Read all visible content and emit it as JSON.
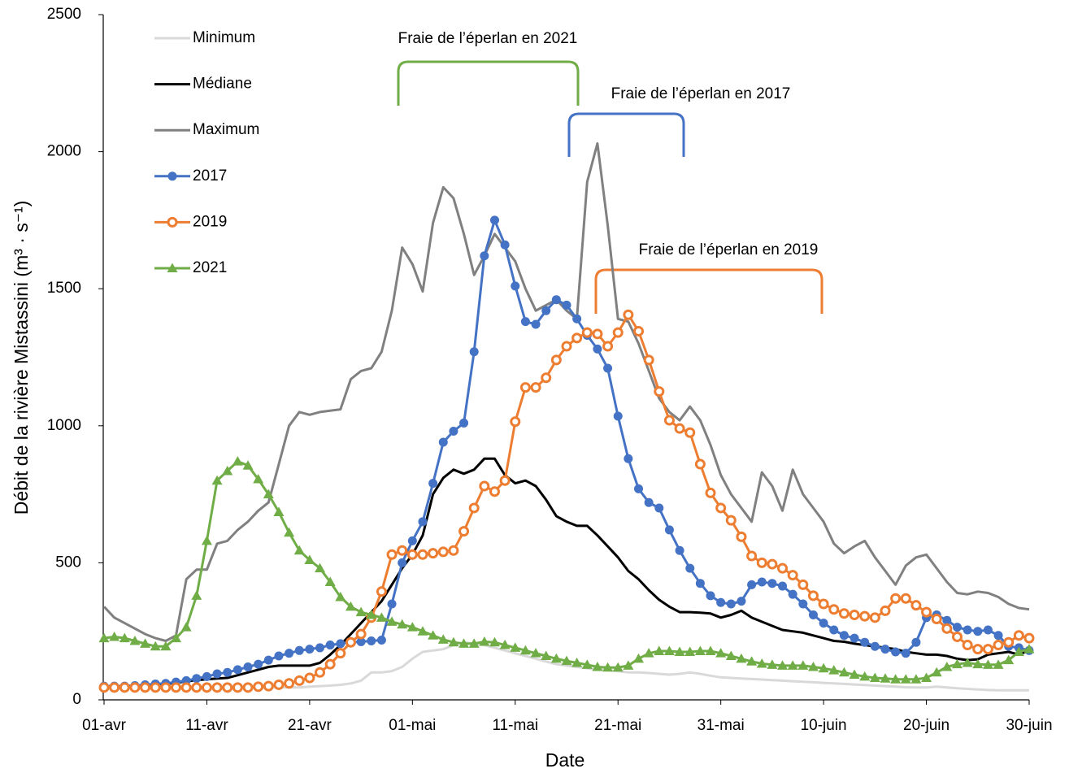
{
  "chart_data": {
    "type": "line",
    "x_label": "Date",
    "y_label": "Débit  de la rivière Mistassini (m³ · s⁻¹)",
    "categories": [
      "01-avr",
      null,
      null,
      null,
      null,
      null,
      null,
      null,
      null,
      null,
      "11-avr",
      null,
      null,
      null,
      null,
      null,
      null,
      null,
      null,
      null,
      "21-avr",
      null,
      null,
      null,
      null,
      null,
      null,
      null,
      null,
      null,
      "01-mai",
      null,
      null,
      null,
      null,
      null,
      null,
      null,
      null,
      null,
      "11-mai",
      null,
      null,
      null,
      null,
      null,
      null,
      null,
      null,
      null,
      "21-mai",
      null,
      null,
      null,
      null,
      null,
      null,
      null,
      null,
      null,
      "31-mai",
      null,
      null,
      null,
      null,
      null,
      null,
      null,
      null,
      null,
      "10-juin",
      null,
      null,
      null,
      null,
      null,
      null,
      null,
      null,
      null,
      "20-juin",
      null,
      null,
      null,
      null,
      null,
      null,
      null,
      null,
      null,
      "30-juin"
    ],
    "ylim": [
      0,
      2500
    ],
    "yticks": [
      0,
      500,
      1000,
      1500,
      2000,
      2500
    ],
    "grid": false,
    "legend": "upper left",
    "series": [
      {
        "name": "Minimum",
        "color": "#d9d9d9",
        "marker": "none",
        "values": [
          45,
          45,
          45,
          45,
          45,
          45,
          45,
          45,
          45,
          45,
          45,
          45,
          45,
          45,
          45,
          45,
          45,
          45,
          45,
          45,
          48,
          50,
          52,
          55,
          60,
          70,
          100,
          100,
          105,
          120,
          150,
          175,
          180,
          185,
          200,
          210,
          205,
          200,
          190,
          180,
          170,
          160,
          150,
          140,
          130,
          125,
          120,
          115,
          110,
          108,
          105,
          100,
          100,
          98,
          95,
          92,
          95,
          100,
          95,
          88,
          82,
          80,
          78,
          76,
          74,
          72,
          70,
          68,
          66,
          64,
          62,
          60,
          58,
          56,
          54,
          52,
          50,
          48,
          46,
          45,
          45,
          48,
          45,
          42,
          40,
          38,
          36,
          35,
          35,
          35,
          35
        ]
      },
      {
        "name": "Médiane",
        "color": "#000000",
        "marker": "none",
        "values": [
          50,
          50,
          50,
          52,
          54,
          56,
          58,
          62,
          68,
          72,
          75,
          78,
          80,
          90,
          100,
          110,
          120,
          125,
          125,
          125,
          125,
          135,
          165,
          200,
          240,
          280,
          320,
          360,
          420,
          480,
          530,
          600,
          750,
          810,
          840,
          825,
          840,
          880,
          880,
          820,
          790,
          800,
          780,
          730,
          670,
          650,
          635,
          635,
          600,
          560,
          520,
          470,
          440,
          400,
          365,
          340,
          320,
          320,
          318,
          315,
          300,
          310,
          325,
          300,
          285,
          270,
          255,
          250,
          245,
          235,
          225,
          215,
          212,
          205,
          200,
          195,
          190,
          185,
          175,
          170,
          165,
          165,
          160,
          150,
          145,
          148,
          165,
          170,
          175,
          165,
          180
        ]
      },
      {
        "name": "Maximum",
        "color": "#808080",
        "marker": "none",
        "values": [
          340,
          300,
          280,
          260,
          240,
          225,
          215,
          235,
          440,
          475,
          475,
          570,
          580,
          620,
          650,
          690,
          720,
          860,
          1000,
          1050,
          1040,
          1050,
          1055,
          1060,
          1170,
          1200,
          1210,
          1270,
          1420,
          1650,
          1590,
          1490,
          1740,
          1870,
          1830,
          1700,
          1550,
          1620,
          1700,
          1650,
          1600,
          1500,
          1420,
          1440,
          1460,
          1420,
          1390,
          1890,
          2030,
          1730,
          1390,
          1380,
          1300,
          1200,
          1100,
          1050,
          1020,
          1070,
          1020,
          930,
          820,
          750,
          700,
          650,
          830,
          780,
          690,
          840,
          750,
          700,
          650,
          570,
          535,
          560,
          580,
          520,
          470,
          420,
          490,
          520,
          530,
          480,
          430,
          390,
          385,
          395,
          390,
          375,
          350,
          335,
          330
        ]
      },
      {
        "name": "2017",
        "color": "#4472c4",
        "marker": "circle",
        "values": [
          50,
          50,
          50,
          52,
          55,
          58,
          60,
          65,
          70,
          78,
          85,
          95,
          100,
          110,
          120,
          130,
          145,
          160,
          170,
          180,
          185,
          190,
          200,
          205,
          210,
          212,
          215,
          218,
          350,
          500,
          580,
          650,
          790,
          940,
          980,
          1010,
          1270,
          1620,
          1750,
          1660,
          1510,
          1380,
          1370,
          1420,
          1460,
          1440,
          1390,
          1330,
          1280,
          1210,
          1035,
          880,
          770,
          720,
          700,
          620,
          545,
          480,
          425,
          380,
          355,
          350,
          360,
          420,
          430,
          425,
          415,
          385,
          350,
          310,
          280,
          255,
          235,
          225,
          210,
          195,
          185,
          175,
          170,
          210,
          300,
          310,
          290,
          265,
          255,
          250,
          255,
          235,
          195,
          190,
          180
        ]
      },
      {
        "name": "2019",
        "color": "#ed7d31",
        "marker": "open-circle",
        "values": [
          45,
          45,
          45,
          45,
          45,
          45,
          45,
          45,
          45,
          45,
          45,
          45,
          45,
          45,
          45,
          48,
          50,
          55,
          60,
          70,
          80,
          100,
          130,
          170,
          210,
          240,
          300,
          395,
          530,
          545,
          530,
          530,
          535,
          540,
          545,
          615,
          700,
          780,
          760,
          800,
          1015,
          1140,
          1140,
          1175,
          1240,
          1290,
          1320,
          1340,
          1335,
          1290,
          1340,
          1405,
          1345,
          1240,
          1125,
          1020,
          990,
          975,
          860,
          755,
          700,
          655,
          595,
          525,
          500,
          495,
          480,
          455,
          420,
          380,
          350,
          330,
          315,
          310,
          305,
          300,
          325,
          370,
          370,
          345,
          320,
          295,
          260,
          230,
          200,
          185,
          185,
          200,
          210,
          235,
          225
        ]
      },
      {
        "name": "2021",
        "color": "#70ad47",
        "marker": "triangle",
        "values": [
          225,
          230,
          225,
          215,
          205,
          195,
          195,
          225,
          265,
          380,
          580,
          800,
          835,
          870,
          855,
          805,
          750,
          685,
          610,
          545,
          510,
          480,
          430,
          375,
          340,
          320,
          310,
          300,
          285,
          275,
          265,
          250,
          235,
          220,
          210,
          205,
          205,
          212,
          210,
          200,
          190,
          180,
          170,
          160,
          150,
          142,
          135,
          128,
          120,
          118,
          118,
          125,
          150,
          170,
          178,
          178,
          175,
          175,
          178,
          178,
          170,
          160,
          150,
          140,
          132,
          128,
          125,
          125,
          125,
          120,
          115,
          108,
          100,
          92,
          85,
          80,
          78,
          75,
          75,
          75,
          80,
          100,
          120,
          130,
          135,
          130,
          128,
          128,
          145,
          175,
          185
        ]
      }
    ],
    "annotations": [
      {
        "text": "Fraie de l’éperlan en 2021",
        "color": "#70ad47"
      },
      {
        "text": "Fraie de l’éperlan en 2017",
        "color": "#4472c4"
      },
      {
        "text": "Fraie de l’éperlan en 2019",
        "color": "#ed7d31"
      }
    ]
  }
}
